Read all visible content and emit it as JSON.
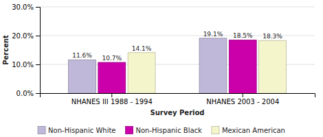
{
  "chart_data": {
    "type": "bar",
    "xlabel": "Survey Period",
    "ylabel": "Percent",
    "categories": [
      "NHANES III 1988 - 1994",
      "NHANES 2003 - 2004"
    ],
    "series": [
      {
        "name": "Non-Hispanic White",
        "color": "#c0b8d8",
        "values": [
          11.6,
          19.1
        ],
        "value_labels": [
          "11.6%",
          "19.1%"
        ]
      },
      {
        "name": "Non-Hispanic Black",
        "color": "#cc00aa",
        "values": [
          10.7,
          18.5
        ],
        "value_labels": [
          "10.7%",
          "18.5%"
        ]
      },
      {
        "name": "Mexican American",
        "color": "#f5f5cc",
        "values": [
          14.1,
          18.3
        ],
        "value_labels": [
          "14.1%",
          "18.3%"
        ]
      }
    ],
    "ylim": [
      0,
      30
    ],
    "yticks": [
      {
        "value": 0,
        "label": "0.0%"
      },
      {
        "value": 10,
        "label": "10.0%"
      },
      {
        "value": 20,
        "label": "20.0%"
      },
      {
        "value": 30,
        "label": "30.0%"
      }
    ],
    "grid": true,
    "data_labels": true,
    "legend": "bottom"
  }
}
